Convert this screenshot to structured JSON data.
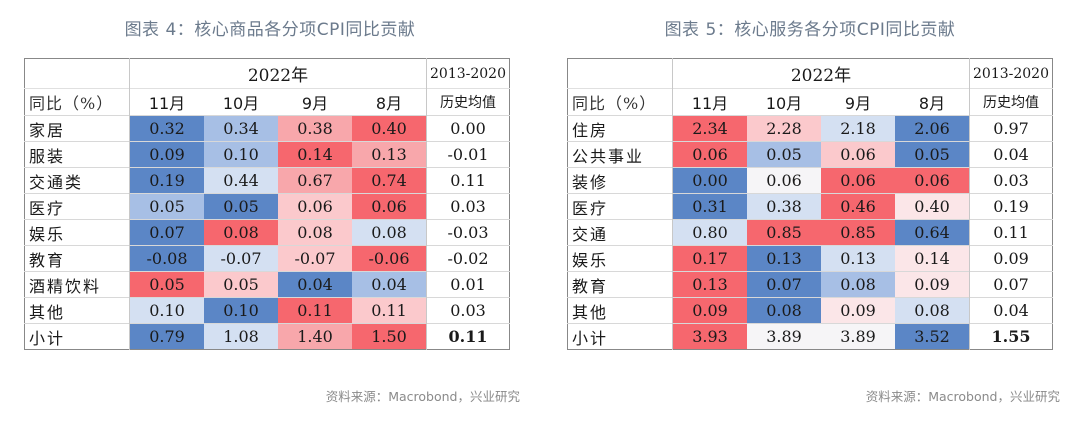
{
  "palette": {
    "B3": "#5b86c6",
    "B2": "#a7bfe5",
    "B1": "#d4e0f2",
    "W": "#f6f5f7",
    "R0": "#fbe6e8",
    "R1": "#fbc9cc",
    "R2": "#f8a7ab",
    "R3": "#f6676e"
  },
  "left": {
    "title": "图表 4：核心商品各分项CPI同比贡献",
    "header": {
      "corner_label": "同比（%）",
      "year": "2022年",
      "months": [
        "11月",
        "10月",
        "9月",
        "8月"
      ],
      "hist_top": "2013-2020",
      "hist_bottom": "历史均值"
    },
    "rows": [
      {
        "label": "家居",
        "values": [
          "0.32",
          "0.34",
          "0.38",
          "0.40"
        ],
        "hist": "0.00"
      },
      {
        "label": "服装",
        "values": [
          "0.09",
          "0.10",
          "0.14",
          "0.13"
        ],
        "hist": "-0.01"
      },
      {
        "label": "交通类",
        "values": [
          "0.19",
          "0.44",
          "0.67",
          "0.74"
        ],
        "hist": "0.11"
      },
      {
        "label": "医疗",
        "values": [
          "0.05",
          "0.05",
          "0.06",
          "0.06"
        ],
        "hist": "0.03"
      },
      {
        "label": "娱乐",
        "values": [
          "0.07",
          "0.08",
          "0.08",
          "0.08"
        ],
        "hist": "-0.03"
      },
      {
        "label": "教育",
        "values": [
          "-0.08",
          "-0.07",
          "-0.07",
          "-0.06"
        ],
        "hist": "-0.02"
      },
      {
        "label": "酒精饮料",
        "values": [
          "0.05",
          "0.05",
          "0.04",
          "0.04"
        ],
        "hist": "0.01"
      },
      {
        "label": "其他",
        "values": [
          "0.10",
          "0.10",
          "0.11",
          "0.11"
        ],
        "hist": "0.03"
      },
      {
        "label": "小计",
        "values": [
          "0.79",
          "1.08",
          "1.40",
          "1.50"
        ],
        "hist": "0.11"
      }
    ],
    "source": "资料来源：Macrobond，兴业研究"
  },
  "right": {
    "title": "图表 5：核心服务各分项CPI同比贡献",
    "header": {
      "corner_label": "同比（%）",
      "year": "2022年",
      "months": [
        "11月",
        "10月",
        "9月",
        "8月"
      ],
      "hist_top": "2013-2020",
      "hist_bottom": "历史均值"
    },
    "rows": [
      {
        "label": "住房",
        "values": [
          "2.34",
          "2.28",
          "2.18",
          "2.06"
        ],
        "hist": "0.97"
      },
      {
        "label": "公共事业",
        "values": [
          "0.06",
          "0.05",
          "0.06",
          "0.05"
        ],
        "hist": "0.04"
      },
      {
        "label": "装修",
        "values": [
          "0.00",
          "0.06",
          "0.06",
          "0.06"
        ],
        "hist": "0.03"
      },
      {
        "label": "医疗",
        "values": [
          "0.31",
          "0.38",
          "0.46",
          "0.40"
        ],
        "hist": "0.19"
      },
      {
        "label": "交通",
        "values": [
          "0.80",
          "0.85",
          "0.85",
          "0.64"
        ],
        "hist": "0.11"
      },
      {
        "label": "娱乐",
        "values": [
          "0.17",
          "0.13",
          "0.13",
          "0.14"
        ],
        "hist": "0.09"
      },
      {
        "label": "教育",
        "values": [
          "0.13",
          "0.07",
          "0.08",
          "0.09"
        ],
        "hist": "0.07"
      },
      {
        "label": "其他",
        "values": [
          "0.09",
          "0.08",
          "0.09",
          "0.08"
        ],
        "hist": "0.04"
      },
      {
        "label": "小计",
        "values": [
          "3.93",
          "3.89",
          "3.89",
          "3.52"
        ],
        "hist": "1.55"
      }
    ],
    "source": "资料来源：Macrobond，兴业研究"
  },
  "chart_data": [
    {
      "type": "heatmap",
      "title": "图表 4：核心商品各分项CPI同比贡献",
      "xlabel": "2022年",
      "ylabel": "同比（%）",
      "x": [
        "11月",
        "10月",
        "9月",
        "8月",
        "2013-2020历史均值"
      ],
      "y": [
        "家居",
        "服装",
        "交通类",
        "医疗",
        "娱乐",
        "教育",
        "酒精饮料",
        "其他",
        "小计"
      ],
      "values": [
        [
          0.32,
          0.34,
          0.38,
          0.4,
          0.0
        ],
        [
          0.09,
          0.1,
          0.14,
          0.13,
          -0.01
        ],
        [
          0.19,
          0.44,
          0.67,
          0.74,
          0.11
        ],
        [
          0.05,
          0.05,
          0.06,
          0.06,
          0.03
        ],
        [
          0.07,
          0.08,
          0.08,
          0.08,
          -0.03
        ],
        [
          -0.08,
          -0.07,
          -0.07,
          -0.06,
          -0.02
        ],
        [
          0.05,
          0.05,
          0.04,
          0.04,
          0.01
        ],
        [
          0.1,
          0.1,
          0.11,
          0.11,
          0.03
        ],
        [
          0.79,
          1.08,
          1.4,
          1.5,
          0.11
        ]
      ],
      "colors": [
        [
          "B3",
          "B2",
          "R2",
          "R3"
        ],
        [
          "B3",
          "B2",
          "R3",
          "R2"
        ],
        [
          "B3",
          "B1",
          "R2",
          "R3"
        ],
        [
          "B2",
          "B3",
          "R1",
          "R3"
        ],
        [
          "B3",
          "R3",
          "R1",
          "B1"
        ],
        [
          "B3",
          "B1",
          "R1",
          "R3"
        ],
        [
          "R3",
          "R1",
          "B3",
          "B2"
        ],
        [
          "B1",
          "B3",
          "R3",
          "R1"
        ],
        [
          "B3",
          "B1",
          "R2",
          "R3"
        ]
      ],
      "source": "资料来源：Macrobond，兴业研究"
    },
    {
      "type": "heatmap",
      "title": "图表 5：核心服务各分项CPI同比贡献",
      "xlabel": "2022年",
      "ylabel": "同比（%）",
      "x": [
        "11月",
        "10月",
        "9月",
        "8月",
        "2013-2020历史均值"
      ],
      "y": [
        "住房",
        "公共事业",
        "装修",
        "医疗",
        "交通",
        "娱乐",
        "教育",
        "其他",
        "小计"
      ],
      "values": [
        [
          2.34,
          2.28,
          2.18,
          2.06,
          0.97
        ],
        [
          0.06,
          0.05,
          0.06,
          0.05,
          0.04
        ],
        [
          0.0,
          0.06,
          0.06,
          0.06,
          0.03
        ],
        [
          0.31,
          0.38,
          0.46,
          0.4,
          0.19
        ],
        [
          0.8,
          0.85,
          0.85,
          0.64,
          0.11
        ],
        [
          0.17,
          0.13,
          0.13,
          0.14,
          0.09
        ],
        [
          0.13,
          0.07,
          0.08,
          0.09,
          0.07
        ],
        [
          0.09,
          0.08,
          0.09,
          0.08,
          0.04
        ],
        [
          3.93,
          3.89,
          3.89,
          3.52,
          1.55
        ]
      ],
      "colors": [
        [
          "R3",
          "R1",
          "B1",
          "B3"
        ],
        [
          "R3",
          "B2",
          "R1",
          "B3"
        ],
        [
          "B3",
          "W",
          "R3",
          "R3"
        ],
        [
          "B3",
          "B1",
          "R3",
          "R0"
        ],
        [
          "B1",
          "R3",
          "R3",
          "B3"
        ],
        [
          "R3",
          "B3",
          "B1",
          "R0"
        ],
        [
          "R3",
          "B3",
          "B2",
          "R0"
        ],
        [
          "R3",
          "B3",
          "R0",
          "B1"
        ],
        [
          "R3",
          "W",
          "W",
          "B3"
        ]
      ],
      "source": "资料来源：Macrobond，兴业研究"
    }
  ]
}
